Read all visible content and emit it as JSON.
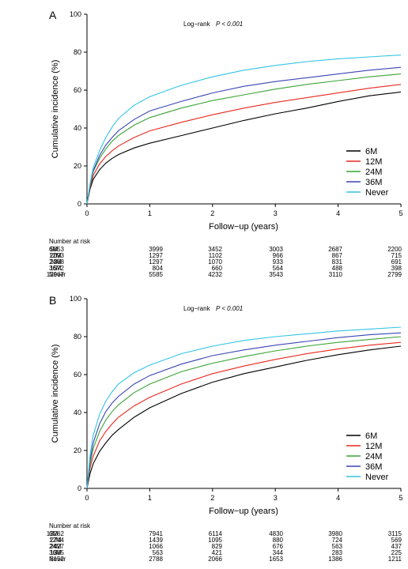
{
  "chart_data": [
    {
      "panel": "A",
      "type": "line",
      "annotation": "Log−rank",
      "annotation_p": "P < 0.001",
      "xlabel": "Follow−up (years)",
      "ylabel": "Cumulative incidence (%)",
      "xlim": [
        0,
        5
      ],
      "ylim": [
        0,
        100
      ],
      "xticks": [
        0,
        1,
        2,
        3,
        4,
        5
      ],
      "yticks": [
        0,
        20,
        40,
        60,
        80,
        100
      ],
      "grid": false,
      "legend_position": "bottom-right",
      "series": [
        {
          "name": "6M",
          "color": "#000000",
          "x": [
            0,
            0.05,
            0.1,
            0.2,
            0.3,
            0.4,
            0.5,
            0.75,
            1,
            1.5,
            2,
            2.5,
            3,
            3.5,
            4,
            4.5,
            5
          ],
          "y": [
            0,
            8,
            13,
            18,
            21.5,
            24,
            26,
            29.5,
            32,
            36,
            40,
            44,
            47.5,
            50.5,
            54,
            57,
            59
          ]
        },
        {
          "name": "12M",
          "color": "#e8281e",
          "x": [
            0,
            0.05,
            0.1,
            0.2,
            0.3,
            0.4,
            0.5,
            0.75,
            1,
            1.5,
            2,
            2.5,
            3,
            3.5,
            4,
            4.5,
            5
          ],
          "y": [
            0,
            9,
            15,
            21,
            25,
            28,
            30.5,
            35,
            38.5,
            43,
            47,
            50.5,
            53.5,
            56,
            58.5,
            61,
            63
          ]
        },
        {
          "name": "24M",
          "color": "#3aa336",
          "x": [
            0,
            0.05,
            0.1,
            0.2,
            0.3,
            0.4,
            0.5,
            0.75,
            1,
            1.5,
            2,
            2.5,
            3,
            3.5,
            4,
            4.5,
            5
          ],
          "y": [
            0,
            10,
            17,
            24,
            29,
            33,
            36,
            41.5,
            45.5,
            50.5,
            54.5,
            57.5,
            60.5,
            63,
            65,
            67,
            68.5
          ]
        },
        {
          "name": "36M",
          "color": "#3b45b3",
          "x": [
            0,
            0.05,
            0.1,
            0.2,
            0.3,
            0.4,
            0.5,
            0.75,
            1,
            1.5,
            2,
            2.5,
            3,
            3.5,
            4,
            4.5,
            5
          ],
          "y": [
            0,
            10.5,
            17.5,
            25.5,
            31,
            35,
            38.5,
            44.5,
            49,
            54,
            58.5,
            62,
            64.5,
            66.5,
            68.5,
            70.5,
            72
          ]
        },
        {
          "name": "Never",
          "color": "#33c4e6",
          "x": [
            0,
            0.05,
            0.1,
            0.2,
            0.3,
            0.4,
            0.5,
            0.75,
            1,
            1.5,
            2,
            2.5,
            3,
            3.5,
            4,
            4.5,
            5
          ],
          "y": [
            0,
            11,
            19,
            28,
            35,
            40.5,
            45,
            52,
            56.5,
            62.5,
            67,
            70.5,
            73,
            75,
            76.5,
            77.5,
            78.5
          ]
        }
      ],
      "risk_table": {
        "title": "Number at risk",
        "time_points": [
          0,
          1,
          2,
          3,
          4,
          5
        ],
        "rows": [
          {
            "label": "6M",
            "values": [
              "5853",
              "3999",
              "3452",
              "3003",
              "2687",
              "2200"
            ]
          },
          {
            "label": "12M",
            "values": [
              "2093",
              "1297",
              "1102",
              "966",
              "867",
              "715"
            ]
          },
          {
            "label": "24M",
            "values": [
              "2368",
              "1297",
              "1070",
              "933",
              "831",
              "691"
            ]
          },
          {
            "label": "36M",
            "values": [
              "1572",
              "804",
              "660",
              "564",
              "488",
              "398"
            ]
          },
          {
            "label": "Never",
            "values": [
              "12967",
              "5585",
              "4232",
              "3543",
              "3110",
              "2799"
            ]
          }
        ]
      }
    },
    {
      "panel": "B",
      "type": "line",
      "annotation": "Log−rank",
      "annotation_p": "P < 0.001",
      "xlabel": "Follow−up (years)",
      "ylabel": "Cumulative incidence (%)",
      "xlim": [
        0,
        5
      ],
      "ylim": [
        0,
        100
      ],
      "xticks": [
        0,
        1,
        2,
        3,
        4,
        5
      ],
      "yticks": [
        0,
        20,
        40,
        60,
        80,
        100
      ],
      "grid": false,
      "legend_position": "bottom-right",
      "series": [
        {
          "name": "6M",
          "color": "#000000",
          "x": [
            0,
            0.05,
            0.1,
            0.2,
            0.3,
            0.4,
            0.5,
            0.75,
            1,
            1.5,
            2,
            2.5,
            3,
            3.5,
            4,
            4.5,
            5
          ],
          "y": [
            0,
            8,
            13,
            19.5,
            24,
            28,
            31,
            37.5,
            42.5,
            50,
            56,
            60.5,
            64,
            67.5,
            70.5,
            73,
            75
          ]
        },
        {
          "name": "12M",
          "color": "#e8281e",
          "x": [
            0,
            0.05,
            0.1,
            0.2,
            0.3,
            0.4,
            0.5,
            0.75,
            1,
            1.5,
            2,
            2.5,
            3,
            3.5,
            4,
            4.5,
            5
          ],
          "y": [
            0,
            11,
            17,
            25,
            30,
            34,
            37.5,
            43.5,
            48,
            55,
            60.5,
            64.5,
            68,
            71,
            73.5,
            75.5,
            77
          ]
        },
        {
          "name": "24M",
          "color": "#3aa336",
          "x": [
            0,
            0.05,
            0.1,
            0.2,
            0.3,
            0.4,
            0.5,
            0.75,
            1,
            1.5,
            2,
            2.5,
            3,
            3.5,
            4,
            4.5,
            5
          ],
          "y": [
            0,
            13,
            21,
            30,
            36,
            40.5,
            44,
            50.5,
            55,
            61.5,
            66,
            69.5,
            72.5,
            75,
            77,
            78.5,
            80
          ]
        },
        {
          "name": "36M",
          "color": "#3b45b3",
          "x": [
            0,
            0.05,
            0.1,
            0.2,
            0.3,
            0.4,
            0.5,
            0.75,
            1,
            1.5,
            2,
            2.5,
            3,
            3.5,
            4,
            4.5,
            5
          ],
          "y": [
            0,
            15,
            24,
            34,
            40.5,
            45,
            48.5,
            55,
            59.5,
            65.5,
            70,
            73,
            75.5,
            77.5,
            79.5,
            81,
            82
          ]
        },
        {
          "name": "Never",
          "color": "#33c4e6",
          "x": [
            0,
            0.05,
            0.1,
            0.2,
            0.3,
            0.4,
            0.5,
            0.75,
            1,
            1.5,
            2,
            2.5,
            3,
            3.5,
            4,
            4.5,
            5
          ],
          "y": [
            0,
            18,
            28,
            39,
            46,
            51,
            55,
            61,
            65,
            71,
            75,
            78,
            80,
            81.5,
            83,
            84,
            85
          ]
        }
      ],
      "risk_table": {
        "title": "Number at risk",
        "time_points": [
          0,
          1,
          2,
          3,
          4,
          5
        ],
        "rows": [
          {
            "label": "6M",
            "values": [
              "13262",
              "7941",
              "6114",
              "4830",
              "3980",
              "3115"
            ]
          },
          {
            "label": "12M",
            "values": [
              "2744",
              "1439",
              "1095",
              "880",
              "724",
              "569"
            ]
          },
          {
            "label": "24M",
            "values": [
              "2427",
              "1066",
              "829",
              "676",
              "563",
              "437"
            ]
          },
          {
            "label": "36M",
            "values": [
              "1385",
              "563",
              "421",
              "344",
              "283",
              "225"
            ]
          },
          {
            "label": "Never",
            "values": [
              "8152",
              "2788",
              "2066",
              "1653",
              "1386",
              "1211"
            ]
          }
        ]
      }
    }
  ]
}
